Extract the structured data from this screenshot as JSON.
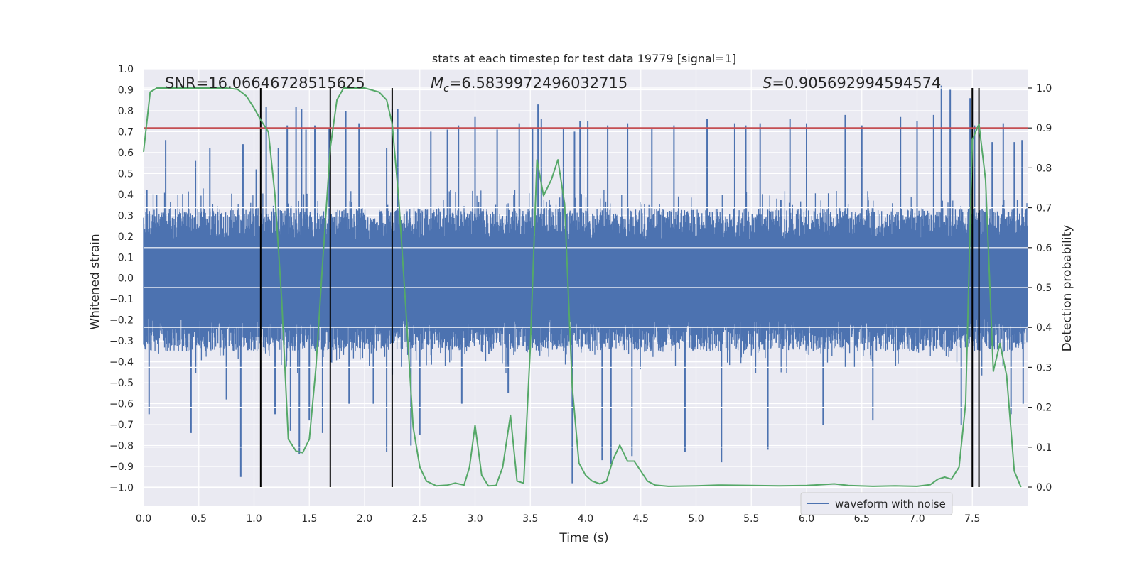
{
  "chart_data": {
    "type": "line",
    "title": "stats at each timestep for test data 19779 [signal=1]",
    "xlabel": "Time (s)",
    "ylabel": "Whitened strain",
    "y2label": "Detection probability",
    "xlim": [
      0.0,
      8.0
    ],
    "ylim": [
      -1.09,
      1.0
    ],
    "y2lim": [
      -0.048,
      1.048
    ],
    "xticks": [
      0.0,
      0.5,
      1.0,
      1.5,
      2.0,
      2.5,
      3.0,
      3.5,
      4.0,
      4.5,
      5.0,
      5.5,
      6.0,
      6.5,
      7.0,
      7.5
    ],
    "xtick_labels": [
      "0.0",
      "0.5",
      "1.0",
      "1.5",
      "2.0",
      "2.5",
      "3.0",
      "3.5",
      "4.0",
      "4.5",
      "5.0",
      "5.5",
      "6.0",
      "6.5",
      "7.0",
      "7.5"
    ],
    "yticks": [
      1.0,
      0.9,
      0.8,
      0.7,
      0.6,
      0.5,
      0.4,
      0.3,
      0.2,
      0.1,
      0.0,
      -0.1,
      -0.2,
      -0.3,
      -0.4,
      -0.5,
      -0.6,
      -0.7,
      -0.8,
      -0.9,
      -1.0
    ],
    "ytick_labels": [
      "1.0",
      "0.9",
      "0.8",
      "0.7",
      "0.6",
      "0.5",
      "0.4",
      "0.3",
      "0.2",
      "0.1",
      "0.0",
      "−0.1",
      "−0.2",
      "−0.3",
      "−0.4",
      "−0.5",
      "−0.6",
      "−0.7",
      "−0.8",
      "−0.9",
      "−1.0"
    ],
    "y2ticks": [
      1.0,
      0.9,
      0.8,
      0.7,
      0.6,
      0.5,
      0.4,
      0.3,
      0.2,
      0.1,
      0.0
    ],
    "y2tick_labels": [
      "1.0",
      "0.9",
      "0.8",
      "0.7",
      "0.6",
      "0.5",
      "0.4",
      "0.3",
      "0.2",
      "0.1",
      "0.0"
    ],
    "annotations": {
      "snr": "SNR=16.06646728515625",
      "mc_symbol": "M",
      "mc_sub": "c",
      "mc_value": "=6.5839972496032715",
      "s_symbol": "S",
      "s_value": "=0.905692994594574"
    },
    "threshold": {
      "value": 0.9,
      "axis": "y2",
      "color": "#c44e52"
    },
    "vlines": [
      1.06,
      1.69,
      2.25,
      7.5,
      7.56
    ],
    "waveform": {
      "name": "waveform with noise",
      "color": "#4c72b0",
      "typical_envelope": [
        -0.35,
        0.33
      ],
      "spikes": [
        [
          0.03,
          0.42
        ],
        [
          0.05,
          -0.65
        ],
        [
          0.2,
          0.66
        ],
        [
          0.43,
          -0.74
        ],
        [
          0.47,
          0.56
        ],
        [
          0.6,
          0.62
        ],
        [
          0.75,
          -0.58
        ],
        [
          0.88,
          -0.95
        ],
        [
          0.9,
          0.64
        ],
        [
          1.02,
          0.52
        ],
        [
          1.11,
          0.82
        ],
        [
          1.19,
          -0.65
        ],
        [
          1.22,
          0.62
        ],
        [
          1.3,
          0.73
        ],
        [
          1.33,
          -0.73
        ],
        [
          1.38,
          0.82
        ],
        [
          1.41,
          -0.84
        ],
        [
          1.43,
          0.81
        ],
        [
          1.47,
          0.71
        ],
        [
          1.5,
          -0.68
        ],
        [
          1.55,
          0.73
        ],
        [
          1.62,
          -0.74
        ],
        [
          1.68,
          0.72
        ],
        [
          1.83,
          0.8
        ],
        [
          1.86,
          -0.6
        ],
        [
          1.95,
          0.74
        ],
        [
          2.08,
          -0.6
        ],
        [
          2.2,
          0.62
        ],
        [
          2.2,
          -0.83
        ],
        [
          2.25,
          0.81
        ],
        [
          2.3,
          0.81
        ],
        [
          2.42,
          -0.8
        ],
        [
          2.5,
          -0.75
        ],
        [
          2.6,
          0.7
        ],
        [
          2.75,
          0.71
        ],
        [
          2.85,
          0.73
        ],
        [
          2.88,
          -0.6
        ],
        [
          3.0,
          0.77
        ],
        [
          3.2,
          0.71
        ],
        [
          3.3,
          -0.55
        ],
        [
          3.4,
          0.74
        ],
        [
          3.52,
          0.72
        ],
        [
          3.57,
          0.83
        ],
        [
          3.6,
          0.76
        ],
        [
          3.8,
          0.72
        ],
        [
          3.88,
          -0.98
        ],
        [
          3.9,
          0.7
        ],
        [
          3.95,
          0.75
        ],
        [
          4.02,
          0.75
        ],
        [
          4.15,
          -0.87
        ],
        [
          4.2,
          0.73
        ],
        [
          4.23,
          -0.89
        ],
        [
          4.38,
          0.74
        ],
        [
          4.42,
          -0.85
        ],
        [
          4.6,
          0.72
        ],
        [
          4.8,
          0.73
        ],
        [
          4.9,
          -0.83
        ],
        [
          5.1,
          0.76
        ],
        [
          5.23,
          -0.88
        ],
        [
          5.35,
          0.74
        ],
        [
          5.45,
          0.73
        ],
        [
          5.58,
          0.74
        ],
        [
          5.65,
          -0.82
        ],
        [
          5.85,
          0.76
        ],
        [
          6.0,
          0.74
        ],
        [
          6.15,
          -0.7
        ],
        [
          6.35,
          0.78
        ],
        [
          6.5,
          0.73
        ],
        [
          6.6,
          -0.68
        ],
        [
          6.85,
          0.77
        ],
        [
          7.0,
          0.75
        ],
        [
          7.15,
          0.78
        ],
        [
          7.22,
          0.92
        ],
        [
          7.3,
          0.9
        ],
        [
          7.4,
          -0.7
        ],
        [
          7.48,
          0.86
        ],
        [
          7.52,
          0.73
        ],
        [
          7.68,
          0.65
        ],
        [
          7.78,
          0.74
        ],
        [
          7.85,
          -0.65
        ],
        [
          7.88,
          0.65
        ],
        [
          7.95,
          0.66
        ],
        [
          7.96,
          -0.6
        ]
      ]
    },
    "series": [
      {
        "name": "detection probability",
        "axis": "y2",
        "color": "#55a868",
        "points": [
          [
            0.0,
            0.84
          ],
          [
            0.06,
            0.99
          ],
          [
            0.12,
            1.0
          ],
          [
            0.25,
            1.0
          ],
          [
            0.5,
            1.0
          ],
          [
            0.75,
            1.0
          ],
          [
            0.85,
            0.997
          ],
          [
            0.93,
            0.98
          ],
          [
            1.0,
            0.95
          ],
          [
            1.06,
            0.92
          ],
          [
            1.13,
            0.89
          ],
          [
            1.19,
            0.73
          ],
          [
            1.25,
            0.47
          ],
          [
            1.31,
            0.12
          ],
          [
            1.38,
            0.09
          ],
          [
            1.44,
            0.086
          ],
          [
            1.5,
            0.12
          ],
          [
            1.56,
            0.3
          ],
          [
            1.62,
            0.56
          ],
          [
            1.69,
            0.85
          ],
          [
            1.75,
            0.97
          ],
          [
            1.81,
            1.0
          ],
          [
            1.88,
            1.0
          ],
          [
            2.0,
            1.0
          ],
          [
            2.13,
            0.99
          ],
          [
            2.2,
            0.97
          ],
          [
            2.25,
            0.91
          ],
          [
            2.31,
            0.72
          ],
          [
            2.38,
            0.42
          ],
          [
            2.44,
            0.15
          ],
          [
            2.5,
            0.05
          ],
          [
            2.56,
            0.015
          ],
          [
            2.65,
            0.003
          ],
          [
            2.75,
            0.005
          ],
          [
            2.82,
            0.01
          ],
          [
            2.9,
            0.005
          ],
          [
            2.95,
            0.05
          ],
          [
            3.0,
            0.155
          ],
          [
            3.06,
            0.03
          ],
          [
            3.12,
            0.003
          ],
          [
            3.19,
            0.004
          ],
          [
            3.25,
            0.05
          ],
          [
            3.32,
            0.18
          ],
          [
            3.38,
            0.015
          ],
          [
            3.44,
            0.01
          ],
          [
            3.5,
            0.35
          ],
          [
            3.56,
            0.82
          ],
          [
            3.62,
            0.73
          ],
          [
            3.69,
            0.77
          ],
          [
            3.75,
            0.82
          ],
          [
            3.81,
            0.71
          ],
          [
            3.88,
            0.25
          ],
          [
            3.94,
            0.06
          ],
          [
            4.0,
            0.03
          ],
          [
            4.06,
            0.015
          ],
          [
            4.13,
            0.008
          ],
          [
            4.19,
            0.015
          ],
          [
            4.25,
            0.07
          ],
          [
            4.31,
            0.105
          ],
          [
            4.38,
            0.065
          ],
          [
            4.44,
            0.065
          ],
          [
            4.5,
            0.04
          ],
          [
            4.56,
            0.015
          ],
          [
            4.63,
            0.005
          ],
          [
            4.75,
            0.002
          ],
          [
            5.0,
            0.003
          ],
          [
            5.2,
            0.005
          ],
          [
            5.5,
            0.004
          ],
          [
            5.75,
            0.003
          ],
          [
            6.0,
            0.004
          ],
          [
            6.13,
            0.006
          ],
          [
            6.25,
            0.008
          ],
          [
            6.38,
            0.004
          ],
          [
            6.6,
            0.002
          ],
          [
            6.8,
            0.003
          ],
          [
            7.0,
            0.002
          ],
          [
            7.12,
            0.006
          ],
          [
            7.19,
            0.02
          ],
          [
            7.25,
            0.025
          ],
          [
            7.31,
            0.02
          ],
          [
            7.38,
            0.05
          ],
          [
            7.44,
            0.21
          ],
          [
            7.5,
            0.87
          ],
          [
            7.56,
            0.91
          ],
          [
            7.62,
            0.77
          ],
          [
            7.69,
            0.29
          ],
          [
            7.75,
            0.36
          ],
          [
            7.81,
            0.28
          ],
          [
            7.88,
            0.04
          ],
          [
            7.94,
            0.0
          ]
        ]
      }
    ],
    "legend": {
      "entries": [
        "waveform with noise"
      ],
      "placement": "lower-right"
    },
    "grid": true,
    "colors": {
      "background": "#eaeaf2",
      "grid": "#ffffff",
      "vline": "#000000"
    }
  }
}
